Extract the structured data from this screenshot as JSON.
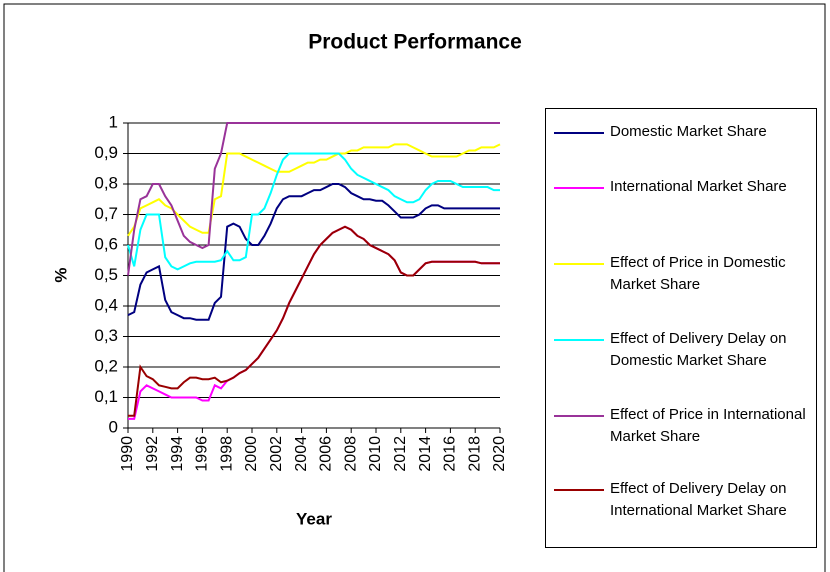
{
  "chart_data": {
    "type": "line",
    "title": "Product Performance",
    "x_label": "Year",
    "y_label": "%",
    "x": [
      1990,
      1990.5,
      1991,
      1991.5,
      1992,
      1992.5,
      1993,
      1993.5,
      1994,
      1994.5,
      1995,
      1995.5,
      1996,
      1996.5,
      1997,
      1997.5,
      1998,
      1998.5,
      1999,
      1999.5,
      2000,
      2000.5,
      2001,
      2001.5,
      2002,
      2002.5,
      2003,
      2003.5,
      2004,
      2004.5,
      2005,
      2005.5,
      2006,
      2006.5,
      2007,
      2007.5,
      2008,
      2008.5,
      2009,
      2009.5,
      2010,
      2010.5,
      2011,
      2011.5,
      2012,
      2012.5,
      2013,
      2013.5,
      2014,
      2014.5,
      2015,
      2015.5,
      2016,
      2016.5,
      2017,
      2017.5,
      2018,
      2018.5,
      2019,
      2019.5,
      2020
    ],
    "xlim": [
      1990,
      2020
    ],
    "xticks": [
      1990,
      1992,
      1994,
      1996,
      1998,
      2000,
      2002,
      2004,
      2006,
      2008,
      2010,
      2012,
      2014,
      2016,
      2018,
      2020
    ],
    "ylim": [
      0,
      1
    ],
    "yticks": [
      0,
      {
        "value": 0.1,
        "label": "0,1"
      },
      {
        "value": 0.2,
        "label": "0,2"
      },
      {
        "value": 0.3,
        "label": "0,3"
      },
      {
        "value": 0.4,
        "label": "0,4"
      },
      {
        "value": 0.5,
        "label": "0,5"
      },
      {
        "value": 0.6,
        "label": "0,6"
      },
      {
        "value": 0.7,
        "label": "0,7"
      },
      {
        "value": 0.8,
        "label": "0,8"
      },
      {
        "value": 0.9,
        "label": "0,9"
      },
      1
    ],
    "grid": true,
    "legend": "right",
    "series": [
      {
        "name": "Domestic Market Share",
        "color": "#000080",
        "values": [
          0.37,
          0.38,
          0.47,
          0.51,
          0.52,
          0.53,
          0.42,
          0.38,
          0.37,
          0.36,
          0.36,
          0.355,
          0.355,
          0.355,
          0.41,
          0.43,
          0.66,
          0.67,
          0.66,
          0.62,
          0.6,
          0.6,
          0.63,
          0.67,
          0.72,
          0.75,
          0.76,
          0.76,
          0.76,
          0.77,
          0.78,
          0.78,
          0.79,
          0.8,
          0.8,
          0.79,
          0.77,
          0.76,
          0.75,
          0.75,
          0.745,
          0.745,
          0.73,
          0.71,
          0.69,
          0.69,
          0.69,
          0.7,
          0.72,
          0.73,
          0.73,
          0.72,
          0.72,
          0.72,
          0.72,
          0.72,
          0.72,
          0.72,
          0.72,
          0.72,
          0.72
        ]
      },
      {
        "name": "International Market Share",
        "color": "#ff00ff",
        "values": [
          0.03,
          0.03,
          0.12,
          0.14,
          0.13,
          0.12,
          0.11,
          0.1,
          0.1,
          0.1,
          0.1,
          0.1,
          0.09,
          0.09,
          0.14,
          0.13,
          0.155,
          0.165,
          0.18,
          0.19,
          0.21,
          0.23,
          0.26,
          0.29,
          0.32,
          0.36,
          0.41,
          0.45,
          0.49,
          0.53,
          0.57,
          0.6,
          0.62,
          0.64,
          0.65,
          0.66,
          0.65,
          0.63,
          0.62,
          0.6,
          0.59,
          0.58,
          0.57,
          0.55,
          0.51,
          0.5,
          0.5,
          0.52,
          0.54,
          0.545,
          0.545,
          0.545,
          0.545,
          0.545,
          0.545,
          0.545,
          0.545,
          0.54,
          0.54,
          0.54,
          0.54
        ]
      },
      {
        "name": "Effect of Price in Domestic Market Share",
        "color": "#ffff00",
        "values": [
          0.63,
          0.66,
          0.72,
          0.73,
          0.74,
          0.75,
          0.73,
          0.72,
          0.7,
          0.68,
          0.66,
          0.65,
          0.64,
          0.64,
          0.75,
          0.76,
          0.9,
          0.9,
          0.9,
          0.89,
          0.88,
          0.87,
          0.86,
          0.85,
          0.84,
          0.84,
          0.84,
          0.85,
          0.86,
          0.87,
          0.87,
          0.88,
          0.88,
          0.89,
          0.9,
          0.9,
          0.91,
          0.91,
          0.92,
          0.92,
          0.92,
          0.92,
          0.92,
          0.93,
          0.93,
          0.93,
          0.92,
          0.91,
          0.9,
          0.89,
          0.89,
          0.89,
          0.89,
          0.89,
          0.9,
          0.91,
          0.91,
          0.92,
          0.92,
          0.92,
          0.93
        ]
      },
      {
        "name": "Effect of Delivery Delay on Domestic Market Share",
        "color": "#00ffff",
        "values": [
          0.6,
          0.53,
          0.65,
          0.7,
          0.7,
          0.7,
          0.56,
          0.53,
          0.52,
          0.53,
          0.54,
          0.545,
          0.545,
          0.545,
          0.545,
          0.55,
          0.58,
          0.55,
          0.55,
          0.56,
          0.7,
          0.7,
          0.72,
          0.77,
          0.83,
          0.88,
          0.9,
          0.9,
          0.9,
          0.9,
          0.9,
          0.9,
          0.9,
          0.9,
          0.9,
          0.88,
          0.85,
          0.83,
          0.82,
          0.81,
          0.8,
          0.79,
          0.78,
          0.76,
          0.75,
          0.74,
          0.74,
          0.75,
          0.78,
          0.8,
          0.81,
          0.81,
          0.81,
          0.8,
          0.79,
          0.79,
          0.79,
          0.79,
          0.79,
          0.78,
          0.78
        ]
      },
      {
        "name": "Effect of Price in International Market Share",
        "color": "#993399",
        "values": [
          0.5,
          0.65,
          0.75,
          0.76,
          0.8,
          0.8,
          0.76,
          0.73,
          0.68,
          0.63,
          0.61,
          0.6,
          0.59,
          0.6,
          0.85,
          0.9,
          1,
          1,
          1,
          1,
          1,
          1,
          1,
          1,
          1,
          1,
          1,
          1,
          1,
          1,
          1,
          1,
          1,
          1,
          1,
          1,
          1,
          1,
          1,
          1,
          1,
          1,
          1,
          1,
          1,
          1,
          1,
          1,
          1,
          1,
          1,
          1,
          1,
          1,
          1,
          1,
          1,
          1,
          1,
          1,
          1
        ]
      },
      {
        "name": "Effect of Delivery Delay on International Market Share",
        "color": "#990000",
        "values": [
          0.04,
          0.04,
          0.2,
          0.17,
          0.16,
          0.14,
          0.135,
          0.13,
          0.13,
          0.15,
          0.165,
          0.165,
          0.16,
          0.16,
          0.165,
          0.15,
          0.155,
          0.165,
          0.18,
          0.19,
          0.21,
          0.23,
          0.26,
          0.29,
          0.32,
          0.36,
          0.41,
          0.45,
          0.49,
          0.53,
          0.57,
          0.6,
          0.62,
          0.64,
          0.65,
          0.66,
          0.65,
          0.63,
          0.62,
          0.6,
          0.59,
          0.58,
          0.57,
          0.55,
          0.51,
          0.5,
          0.5,
          0.52,
          0.54,
          0.545,
          0.545,
          0.545,
          0.545,
          0.545,
          0.545,
          0.545,
          0.545,
          0.54,
          0.54,
          0.54,
          0.54
        ]
      }
    ]
  }
}
